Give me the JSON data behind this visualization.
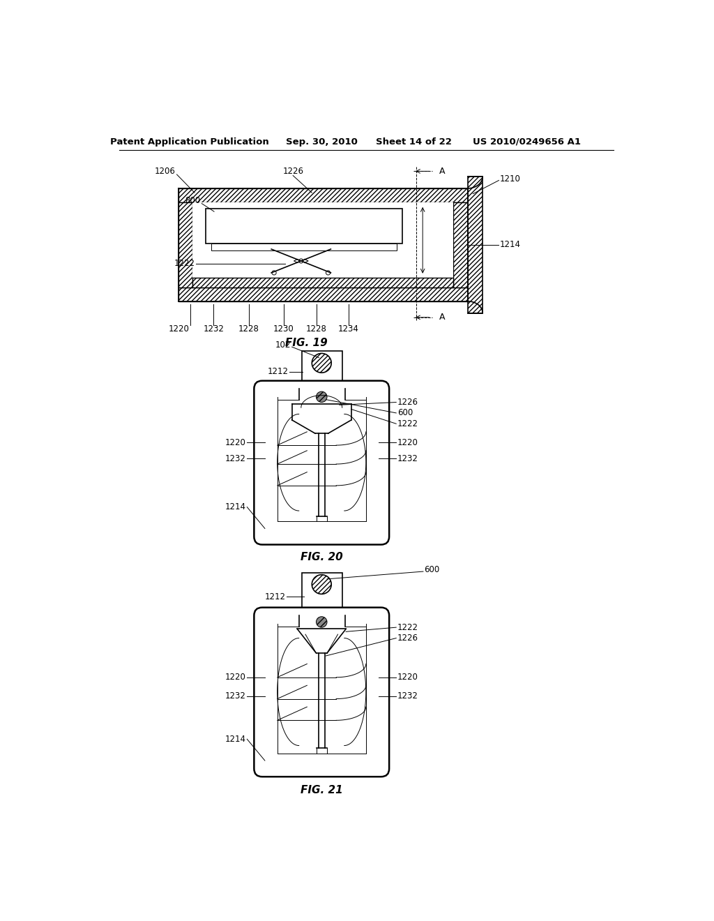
{
  "background_color": "#ffffff",
  "header_text": "Patent Application Publication",
  "header_date": "Sep. 30, 2010",
  "header_sheet": "Sheet 14 of 22",
  "header_patent": "US 2010/0249656 A1",
  "fig19_title": "FIG. 19",
  "fig20_title": "FIG. 20",
  "fig21_title": "FIG. 21",
  "line_color": "#000000"
}
